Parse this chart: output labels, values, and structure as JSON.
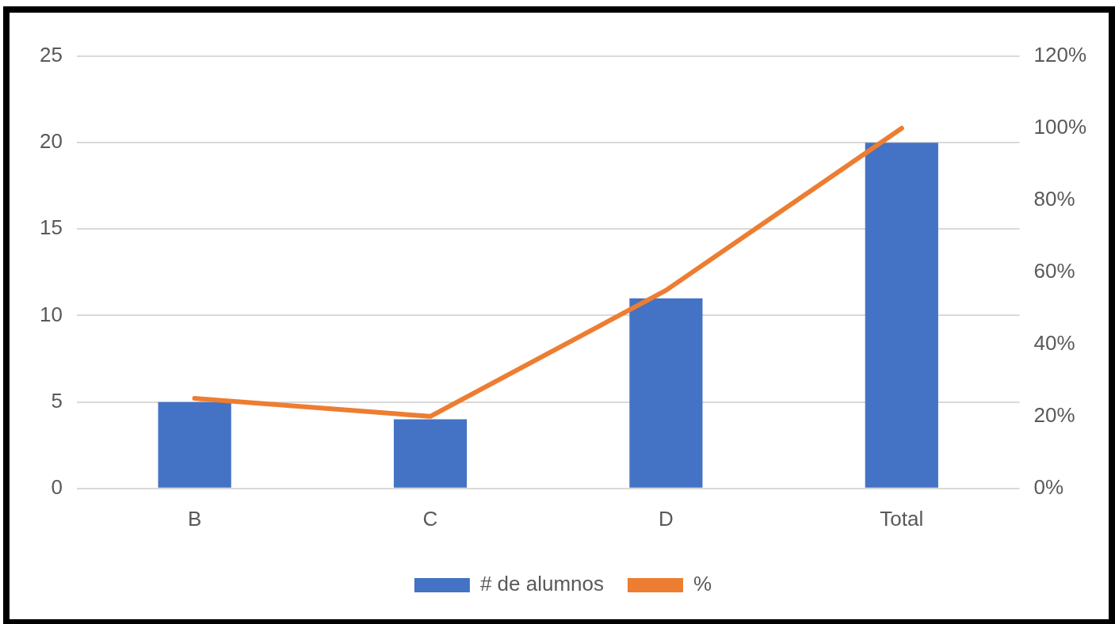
{
  "chart_data": {
    "type": "bar",
    "categories": [
      "B",
      "C",
      "D",
      "Total"
    ],
    "series": [
      {
        "name": "# de alumnos",
        "color": "#4472c4",
        "values": [
          5,
          4,
          11,
          20
        ]
      },
      {
        "name": "%",
        "type": "line",
        "color": "#ed7d31",
        "axis": "y2",
        "values": [
          25,
          20,
          55,
          100
        ]
      }
    ],
    "ylim": [
      0,
      25
    ],
    "yticks": [
      0,
      5,
      10,
      15,
      20,
      25
    ],
    "y2lim": [
      0,
      120
    ],
    "y2ticks": [
      {
        "value": 0,
        "label": "0%"
      },
      {
        "value": 20,
        "label": "20%"
      },
      {
        "value": 40,
        "label": "40%"
      },
      {
        "value": 60,
        "label": "60%"
      },
      {
        "value": 80,
        "label": "80%"
      },
      {
        "value": 100,
        "label": "100%"
      },
      {
        "value": 120,
        "label": "120%"
      }
    ],
    "grid": "y",
    "legend": "bottom"
  }
}
